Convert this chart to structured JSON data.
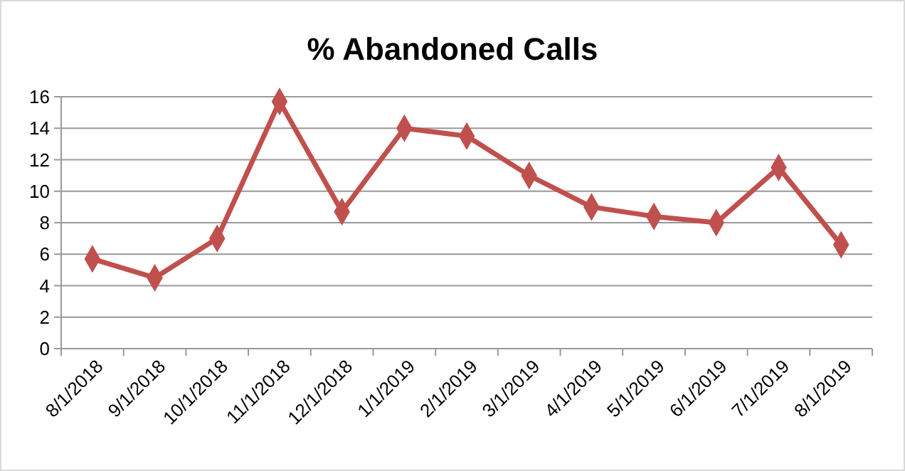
{
  "chart_data": {
    "type": "line",
    "title": "% Abandoned Calls",
    "categories": [
      "8/1/2018",
      "9/1/2018",
      "10/1/2018",
      "11/1/2018",
      "12/1/2018",
      "1/1/2019",
      "2/1/2019",
      "3/1/2019",
      "4/1/2019",
      "5/1/2019",
      "6/1/2019",
      "7/1/2019",
      "8/1/2019"
    ],
    "series": [
      {
        "color": "#c0504d",
        "values": [
          5.7,
          4.5,
          7.0,
          15.7,
          8.7,
          14.0,
          13.5,
          11.0,
          9.0,
          8.4,
          8.0,
          11.5,
          6.6
        ]
      }
    ],
    "ylim": [
      0,
      16
    ],
    "yticks": [
      0,
      2,
      4,
      6,
      8,
      10,
      12,
      14,
      16
    ],
    "grid": "y",
    "marker": "diamond",
    "line_style": "solid"
  }
}
